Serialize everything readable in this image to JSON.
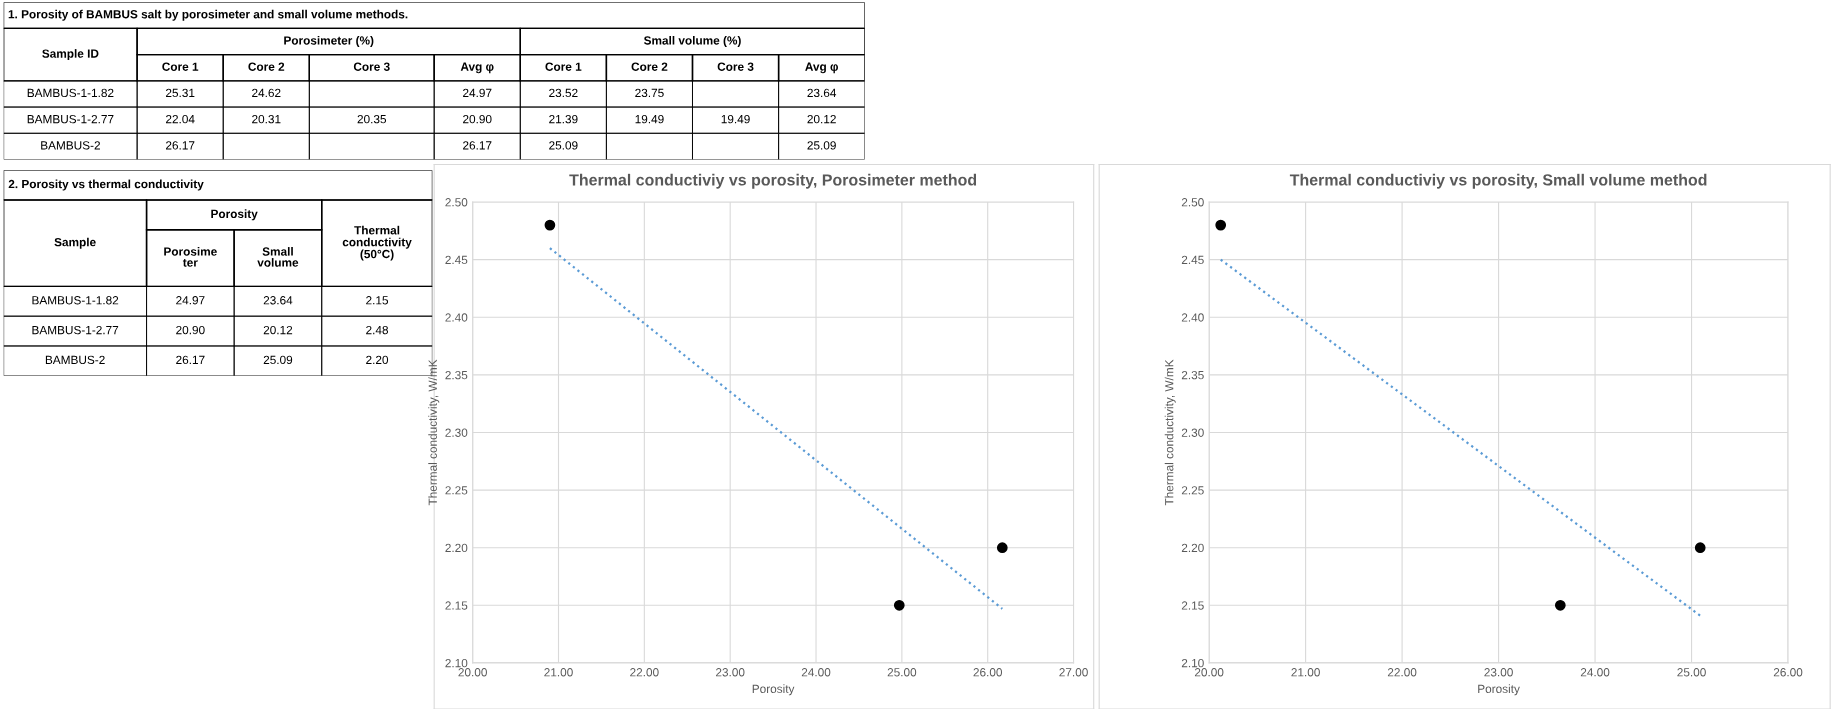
{
  "chart_data": [
    {
      "type": "other",
      "title": "1. Porosity of BAMBUS salt by porosimeter and small volume methods.",
      "ylabel": "Sample ID",
      "annotations": [
        "Porosimeter (%)",
        "Small volume (%)"
      ],
      "categories": [
        "Core 1",
        "Core 2",
        "Core 3",
        "Avg φ",
        "Core 1",
        "Core 2",
        "Core 3",
        "Avg φ"
      ],
      "y_categories": [
        "BAMBUS-1-1.82",
        "BAMBUS-1-2.77",
        "BAMBUS-2"
      ],
      "cell_labels": [
        [
          "25.31",
          "24.62",
          null,
          "24.97",
          "23.52",
          "23.75",
          null,
          "23.64"
        ],
        [
          "22.04",
          "20.31",
          "20.35",
          "20.90",
          "21.39",
          "19.49",
          "19.49",
          "20.12"
        ],
        [
          "26.17",
          null,
          null,
          "26.17",
          "25.09",
          null,
          null,
          "25.09"
        ]
      ]
    },
    {
      "type": "other",
      "title": "2. Porosity vs thermal conductivity",
      "ylabel": "Sample",
      "annotations": [
        "Porosity"
      ],
      "categories": [
        "Porosime\nter",
        "Small\nvolume",
        "Thermal\nconductivity\n(50°C)"
      ],
      "y_categories": [
        "BAMBUS-1-1.82",
        "BAMBUS-1-2.77",
        "BAMBUS-2"
      ],
      "cell_labels": [
        [
          "24.97",
          "23.64",
          "2.15"
        ],
        [
          "20.90",
          "20.12",
          "2.48"
        ],
        [
          "26.17",
          "25.09",
          "2.20"
        ]
      ]
    },
    {
      "type": "scatter",
      "title": "Thermal conductiviy vs porosity, Porosimeter method",
      "xlabel": "Porosity",
      "ylabel": "Thermal conductivity, W/mK",
      "series": [
        {
          "type": "scatter",
          "color": "#000000",
          "x": [
            20.9,
            24.97,
            26.17
          ],
          "values": [
            2.48,
            2.15,
            2.2
          ],
          "marker": "circle"
        },
        {
          "type": "line",
          "color": "#5b9bd5",
          "x": [
            20.9,
            26.17
          ],
          "values": [
            2.46,
            2.147
          ],
          "line_style": "dotted",
          "marker": "none"
        }
      ],
      "xlim": [
        20,
        27
      ],
      "xticks": [
        {
          "value": 20,
          "label": "20.00"
        },
        {
          "value": 21,
          "label": "21.00"
        },
        {
          "value": 22,
          "label": "22.00"
        },
        {
          "value": 23,
          "label": "23.00"
        },
        {
          "value": 24,
          "label": "24.00"
        },
        {
          "value": 25,
          "label": "25.00"
        },
        {
          "value": 26,
          "label": "26.00"
        },
        {
          "value": 27,
          "label": "27.00"
        }
      ],
      "ylim": [
        2.1,
        2.5
      ],
      "yticks": [
        {
          "value": 2.1,
          "label": "2.10"
        },
        {
          "value": 2.15,
          "label": "2.15"
        },
        {
          "value": 2.2,
          "label": "2.20"
        },
        {
          "value": 2.25,
          "label": "2.25"
        },
        {
          "value": 2.3,
          "label": "2.30"
        },
        {
          "value": 2.35,
          "label": "2.35"
        },
        {
          "value": 2.4,
          "label": "2.40"
        },
        {
          "value": 2.45,
          "label": "2.45"
        },
        {
          "value": 2.5,
          "label": "2.50"
        }
      ],
      "grid": true
    },
    {
      "type": "scatter",
      "title": "Thermal conductiviy vs porosity, Small volume method",
      "xlabel": "Porosity",
      "ylabel": "Thermal conductivity, W/mK",
      "series": [
        {
          "type": "scatter",
          "color": "#000000",
          "x": [
            20.12,
            23.64,
            25.09
          ],
          "values": [
            2.48,
            2.15,
            2.2
          ],
          "marker": "circle"
        },
        {
          "type": "line",
          "color": "#5b9bd5",
          "x": [
            20.12,
            25.09
          ],
          "values": [
            2.45,
            2.141
          ],
          "line_style": "dotted",
          "marker": "none"
        }
      ],
      "xlim": [
        20,
        26
      ],
      "xticks": [
        {
          "value": 20,
          "label": "20.00"
        },
        {
          "value": 21,
          "label": "21.00"
        },
        {
          "value": 22,
          "label": "22.00"
        },
        {
          "value": 23,
          "label": "23.00"
        },
        {
          "value": 24,
          "label": "24.00"
        },
        {
          "value": 25,
          "label": "25.00"
        },
        {
          "value": 26,
          "label": "26.00"
        }
      ],
      "ylim": [
        2.1,
        2.5
      ],
      "yticks": [
        {
          "value": 2.1,
          "label": "2.10"
        },
        {
          "value": 2.15,
          "label": "2.15"
        },
        {
          "value": 2.2,
          "label": "2.20"
        },
        {
          "value": 2.25,
          "label": "2.25"
        },
        {
          "value": 2.3,
          "label": "2.30"
        },
        {
          "value": 2.35,
          "label": "2.35"
        },
        {
          "value": 2.4,
          "label": "2.40"
        },
        {
          "value": 2.45,
          "label": "2.45"
        },
        {
          "value": 2.5,
          "label": "2.50"
        }
      ],
      "grid": true
    }
  ]
}
